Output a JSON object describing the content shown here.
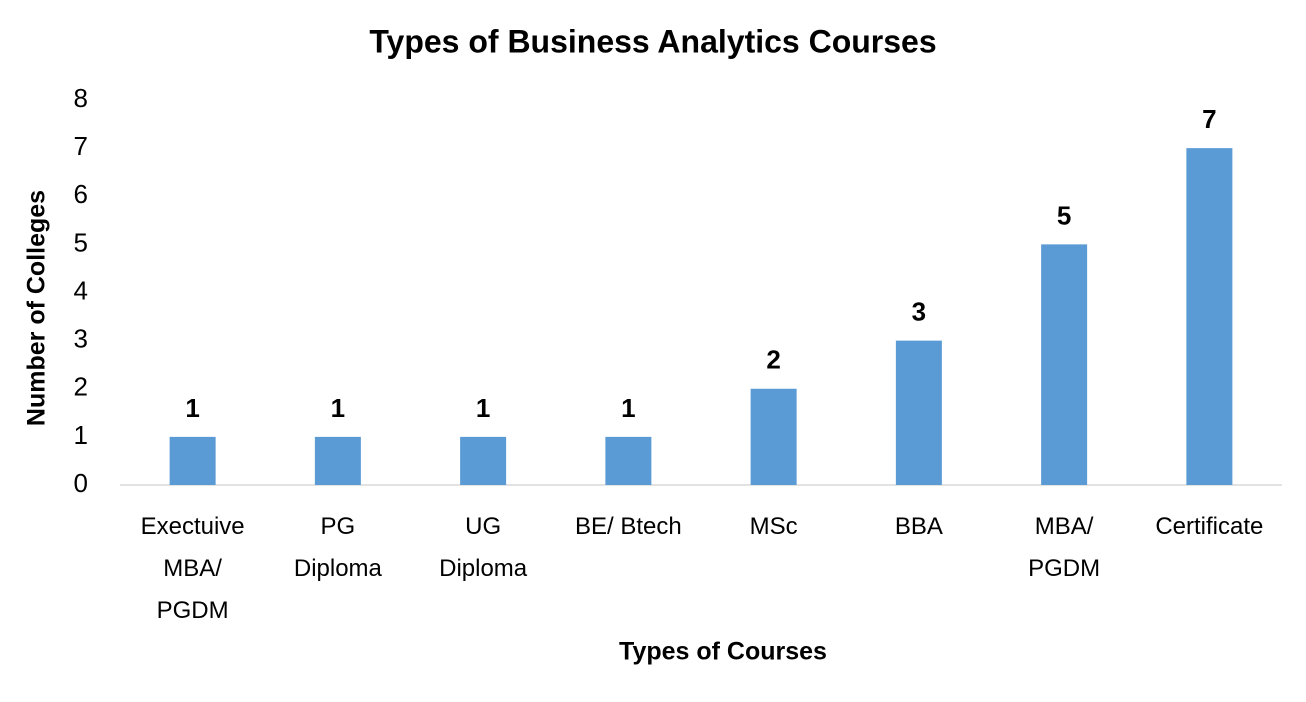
{
  "chart_data": {
    "type": "bar",
    "title": "Types of Business Analytics Courses",
    "x_label": "Types of Courses",
    "y_label": "Number of Colleges",
    "categories": [
      "Exectuive MBA/ PGDM",
      "PG Diploma",
      "UG Diploma",
      "BE/ Btech",
      "MSc",
      "BBA",
      "MBA/ PGDM",
      "Certificate"
    ],
    "values": [
      1,
      1,
      1,
      1,
      2,
      3,
      5,
      7
    ],
    "color": "#5b9bd5",
    "ylim": [
      0,
      8
    ],
    "yticks": [
      0,
      1,
      2,
      3,
      4,
      5,
      6,
      7,
      8
    ],
    "grid": false
  }
}
